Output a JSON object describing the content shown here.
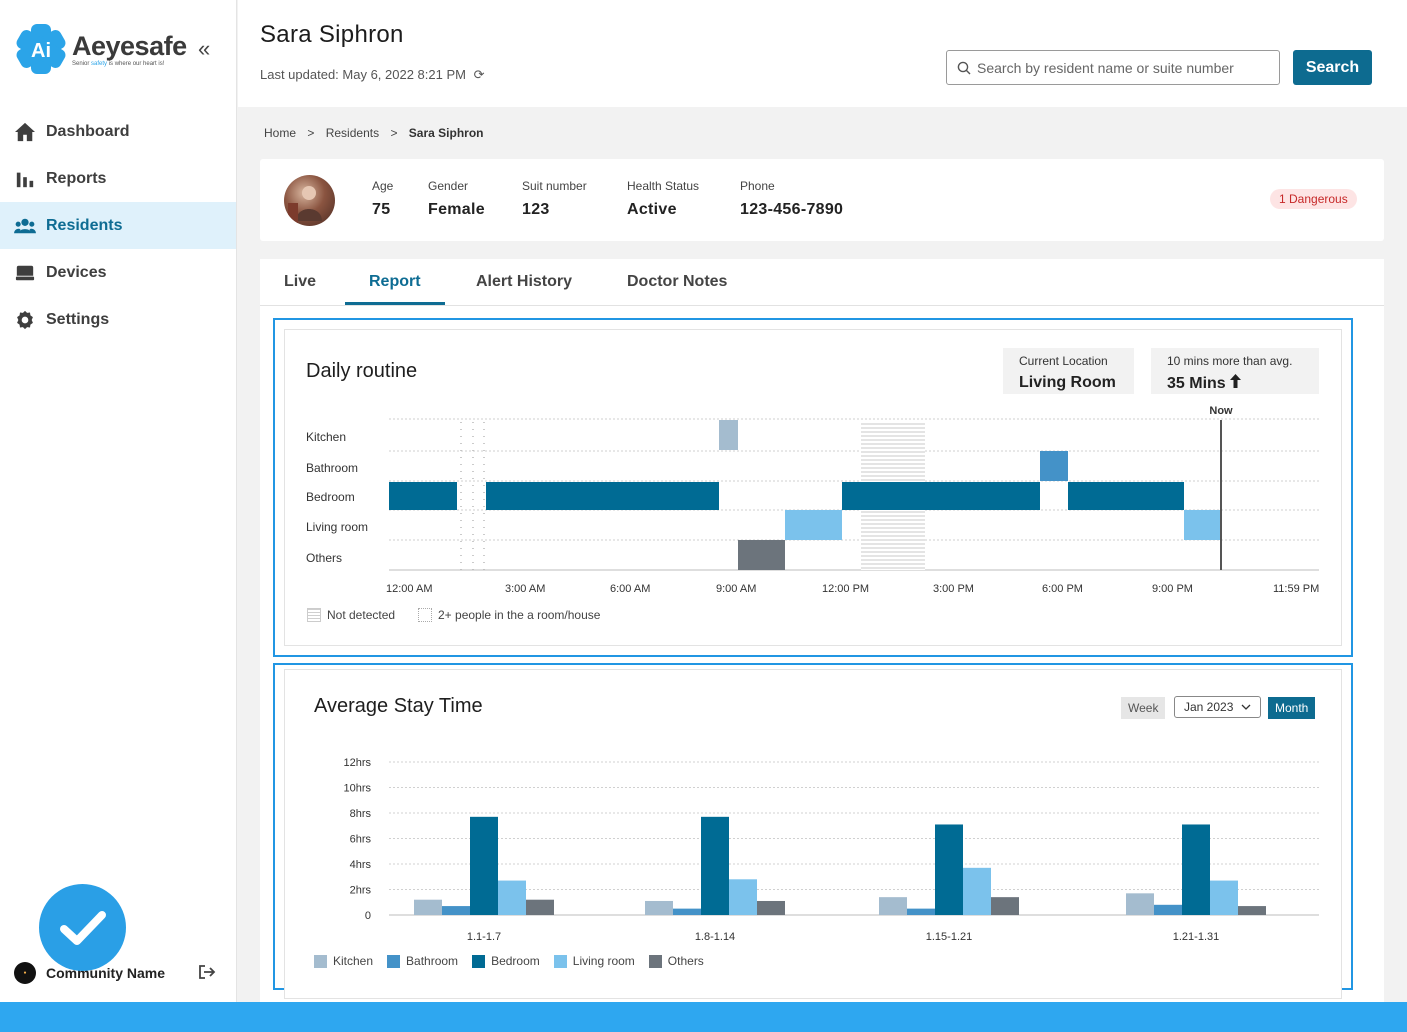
{
  "brand": {
    "name": "Aeyesafe",
    "tagline_pre": "Senior ",
    "tagline_mid": "safety",
    "tagline_post": " is where our heart is!",
    "mark_text": "Ai",
    "collapse": "«"
  },
  "nav": [
    {
      "label": "Dashboard",
      "icon": "home-icon"
    },
    {
      "label": "Reports",
      "icon": "bar-chart-icon"
    },
    {
      "label": "Residents",
      "icon": "people-icon",
      "active": true
    },
    {
      "label": "Devices",
      "icon": "device-icon"
    },
    {
      "label": "Settings",
      "icon": "gear-icon"
    }
  ],
  "community": {
    "name": "Community Name",
    "logout_icon": "logout-icon"
  },
  "header": {
    "title": "Sara Siphron",
    "updated": "Last updated: May 6, 2022 8:21 PM",
    "search_placeholder": "Search by resident name or suite number",
    "search_label": "Search"
  },
  "breadcrumb": {
    "home": "Home",
    "residents": "Residents",
    "current": "Sara Siphron",
    "sep": ">"
  },
  "resident": {
    "age_label": "Age",
    "age": "75",
    "gender_label": "Gender",
    "gender": "Female",
    "suit_label": "Suit number",
    "suit": "123",
    "health_label": "Health Status",
    "health": "Active",
    "phone_label": "Phone",
    "phone": "123-456-7890",
    "badge": "1 Dangerous"
  },
  "tabs": [
    "Live",
    "Report",
    "Alert History",
    "Doctor Notes"
  ],
  "active_tab": "Report",
  "daily": {
    "title": "Daily routine",
    "loc_label": "Current Location",
    "loc_value": "Living Room",
    "avg_label": "10 mins more than avg.",
    "avg_value": "35 Mins",
    "now_label": "Now",
    "rows": [
      "Kitchen",
      "Bathroom",
      "Bedroom",
      "Living room",
      "Others"
    ],
    "ticks": [
      "12:00 AM",
      "3:00 AM",
      "6:00 AM",
      "9:00 AM",
      "12:00 PM",
      "3:00 PM",
      "6:00 PM",
      "9:00 PM",
      "11:59 PM"
    ],
    "legend_not_detected": "Not detected",
    "legend_multi": "2+ people in the a room/house"
  },
  "stay": {
    "title": "Average Stay Time",
    "week": "Week",
    "period": "Jan 2023",
    "month": "Month",
    "yticks": [
      "12hrs",
      "10hrs",
      "8hrs",
      "6hrs",
      "4hrs",
      "2hrs",
      "0"
    ],
    "groups": [
      "1.1-1.7",
      "1.8-1.14",
      "1.15-1.21",
      "1.21-1.31"
    ],
    "legend": [
      "Kitchen",
      "Bathroom",
      "Bedroom",
      "Living room",
      "Others"
    ]
  },
  "colors": {
    "accent": "#0d6b90",
    "kitchen": "#a4bccf",
    "bathroom": "#4492c8",
    "bedroom": "#006b94",
    "living": "#7bc2ec",
    "others": "#6c747c",
    "highlight": "#2196e3"
  },
  "chart_data": {
    "type": "bar",
    "title": "Average Stay Time",
    "categories": [
      "1.1-1.7",
      "1.8-1.14",
      "1.15-1.21",
      "1.21-1.31"
    ],
    "ylim": [
      0,
      12
    ],
    "series": [
      {
        "name": "Kitchen",
        "values": [
          1.2,
          1.1,
          1.4,
          1.7
        ]
      },
      {
        "name": "Bathroom",
        "values": [
          0.7,
          0.5,
          0.5,
          0.8
        ]
      },
      {
        "name": "Bedroom",
        "values": [
          7.7,
          7.7,
          7.1,
          7.1
        ]
      },
      {
        "name": "Living room",
        "values": [
          2.7,
          2.8,
          3.7,
          2.7
        ]
      },
      {
        "name": "Others",
        "values": [
          1.2,
          1.1,
          1.4,
          0.7
        ]
      }
    ]
  }
}
